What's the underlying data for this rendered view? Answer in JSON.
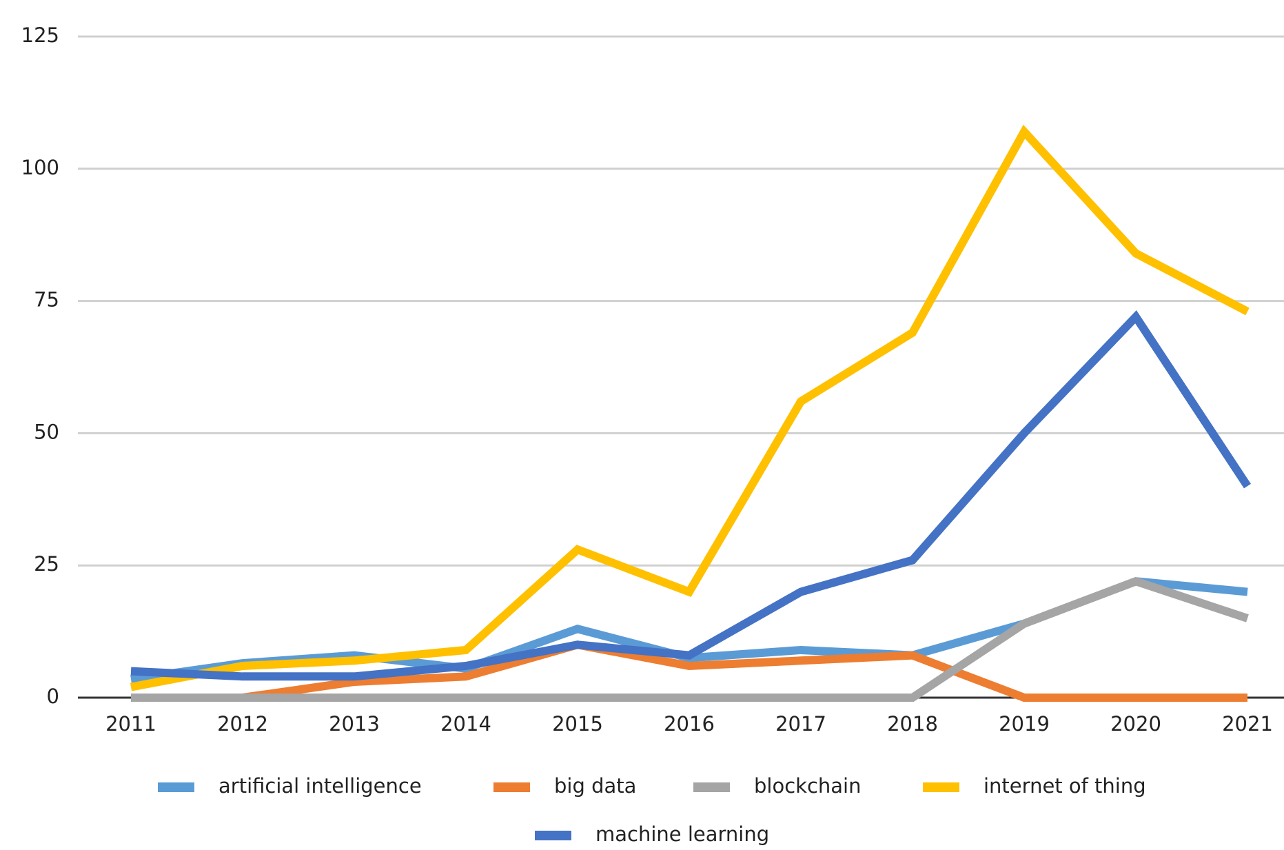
{
  "chart_data": {
    "type": "line",
    "categories": [
      "2011",
      "2012",
      "2013",
      "2014",
      "2015",
      "2016",
      "2017",
      "2018",
      "2019",
      "2020",
      "2021"
    ],
    "series": [
      {
        "name": "artificial intelligence",
        "color": "#5b9bd5",
        "values": [
          3.5,
          6.5,
          8,
          5.5,
          13,
          7.5,
          9,
          8,
          14,
          22,
          20
        ]
      },
      {
        "name": "big data",
        "color": "#ed7d31",
        "values": [
          0,
          0,
          3,
          4,
          10,
          6,
          7,
          8,
          0,
          0,
          0
        ]
      },
      {
        "name": "blockchain",
        "color": "#a5a5a5",
        "values": [
          0,
          0,
          0,
          0,
          0,
          0,
          0,
          0,
          14,
          22,
          15
        ]
      },
      {
        "name": "internet of thing",
        "color": "#ffc000",
        "values": [
          2,
          6,
          7,
          9,
          28,
          20,
          56,
          69,
          107,
          84,
          73
        ]
      },
      {
        "name": "machine learning",
        "color": "#4472c4",
        "values": [
          5,
          4,
          4,
          6,
          10,
          8,
          20,
          26,
          50,
          72,
          40
        ]
      }
    ],
    "ylim": [
      0,
      125
    ],
    "yticks": [
      0,
      25,
      50,
      75,
      100,
      125
    ],
    "grid": true,
    "legend": "bottom"
  }
}
